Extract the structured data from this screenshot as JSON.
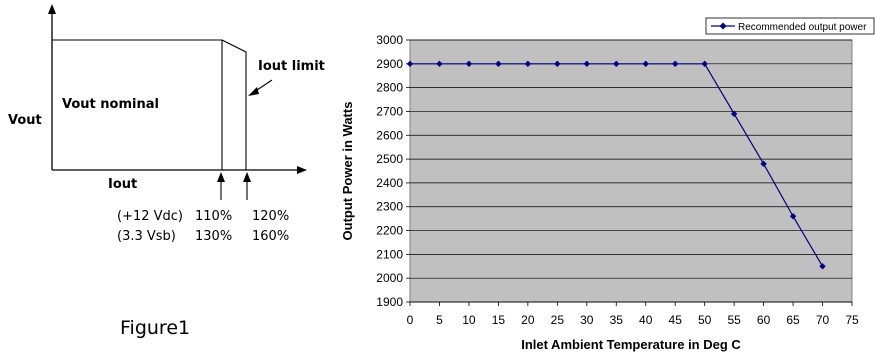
{
  "figure": {
    "caption": "Figure1",
    "y_axis_label": "Vout",
    "x_axis_label": "Iout",
    "region_label": "Vout nominal",
    "limit_label": "Iout limit",
    "rows": [
      {
        "rail": "(+12 Vdc)",
        "knee": "110%",
        "limit": "120%"
      },
      {
        "rail": "(3.3 Vsb)",
        "knee": "130%",
        "limit": "160%"
      }
    ]
  },
  "chart_data": {
    "type": "line",
    "title": "",
    "xlabel": "Inlet Ambient Temperature in Deg C",
    "ylabel": "Output Power in Watts",
    "xlim": [
      0,
      75
    ],
    "ylim": [
      1900,
      3000
    ],
    "x_ticks": [
      0,
      5,
      10,
      15,
      20,
      25,
      30,
      35,
      40,
      45,
      50,
      55,
      60,
      65,
      70,
      75
    ],
    "y_ticks": [
      1900,
      2000,
      2100,
      2200,
      2300,
      2400,
      2500,
      2600,
      2700,
      2800,
      2900,
      3000
    ],
    "grid": "horizontal",
    "plot_background": "#c0c0c0",
    "legend_position": "top-right",
    "series": [
      {
        "name": "Recommended output power",
        "color": "#000080",
        "x": [
          0,
          5,
          10,
          15,
          20,
          25,
          30,
          35,
          40,
          45,
          50,
          55,
          60,
          65,
          70
        ],
        "y": [
          2900,
          2900,
          2900,
          2900,
          2900,
          2900,
          2900,
          2900,
          2900,
          2900,
          2900,
          2690,
          2480,
          2260,
          2050
        ]
      }
    ]
  }
}
